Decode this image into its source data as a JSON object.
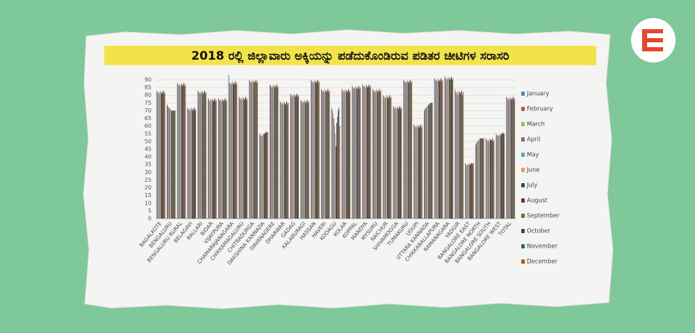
{
  "chart_data": {
    "type": "bar",
    "title": "2018 ರಲ್ಲಿ ಜಿಲ್ಲಾವಾರು ಅಕ್ಕಿಯನ್ನು ಪಡೆದುಕೊಂಡಿರುವ ಪಡಿತರ ಚೀಟಿಗಳ ಸರಾಸರಿ",
    "categories": [
      "BAGALKOTE",
      "BENGALURU",
      "BENGALURU RURAL",
      "BELAGAVI",
      "BALLARI",
      "BIDAR",
      "VIJAYPURA",
      "CHAMARAJANAGARA",
      "CHIKKAMAGALURU",
      "CHITRADURGA",
      "DAKSHINA KANNADA",
      "DAVANAGERE",
      "DHARWAR",
      "GADAG",
      "KALABURAGI",
      "HASSAN",
      "HAVERI",
      "KODAGU",
      "KOLAR",
      "KOPPAL",
      "MANDYA",
      "MYSURU",
      "RAICHUR",
      "SHIVAMOGGA",
      "TUMAKURU",
      "UDUPI",
      "UTTARA KANNADA",
      "CHIKKABALLAPURA",
      "RAMANAGARA",
      "YADGIR",
      "BANGALORE EAST",
      "BANGALORE NORTH",
      "BANGALORE SOUTH",
      "BANGALORE WEST",
      "TOTAL"
    ],
    "series": [
      {
        "name": "January",
        "color": "#4f81bd",
        "values": [
          83,
          74,
          88,
          72,
          83,
          78,
          78,
          93,
          79,
          90,
          55,
          87,
          76,
          81,
          77,
          90,
          84,
          72,
          84,
          86,
          87,
          84,
          80,
          73,
          90,
          61,
          70,
          91,
          92,
          84,
          36,
          48,
          52,
          55,
          79
        ]
      },
      {
        "name": "February",
        "color": "#c0504d",
        "values": [
          82,
          73,
          87,
          71,
          82,
          77,
          77,
          88,
          78,
          89,
          54,
          86,
          75,
          80,
          76,
          89,
          83,
          70,
          83,
          85,
          86,
          83,
          79,
          72,
          89,
          60,
          71,
          90,
          91,
          82,
          35,
          49,
          51,
          54,
          78
        ]
      },
      {
        "name": "March",
        "color": "#9bbb59",
        "values": [
          81,
          72,
          86,
          70,
          81,
          76,
          76,
          87,
          77,
          88,
          53,
          85,
          74,
          79,
          75,
          88,
          82,
          68,
          82,
          84,
          85,
          82,
          78,
          71,
          88,
          59,
          72,
          89,
          90,
          81,
          34,
          50,
          50,
          53,
          77
        ]
      },
      {
        "name": "April",
        "color": "#8064a2",
        "values": [
          82,
          72,
          87,
          71,
          82,
          77,
          77,
          88,
          78,
          89,
          54,
          86,
          75,
          80,
          76,
          89,
          83,
          65,
          83,
          85,
          86,
          83,
          79,
          72,
          89,
          60,
          72,
          90,
          91,
          82,
          35,
          50,
          51,
          54,
          78
        ]
      },
      {
        "name": "May",
        "color": "#4bacc6",
        "values": [
          81,
          71,
          86,
          70,
          81,
          76,
          76,
          87,
          77,
          88,
          54,
          85,
          74,
          79,
          75,
          88,
          82,
          60,
          82,
          84,
          85,
          82,
          78,
          71,
          88,
          59,
          73,
          89,
          90,
          80,
          35,
          51,
          50,
          54,
          77
        ]
      },
      {
        "name": "June",
        "color": "#f79646",
        "values": [
          83,
          71,
          88,
          72,
          83,
          78,
          78,
          89,
          79,
          90,
          55,
          87,
          76,
          81,
          77,
          90,
          84,
          55,
          84,
          86,
          87,
          84,
          80,
          73,
          90,
          61,
          73,
          91,
          92,
          83,
          36,
          51,
          52,
          55,
          79
        ]
      },
      {
        "name": "July",
        "color": "#2c4d75",
        "values": [
          82,
          70,
          87,
          71,
          82,
          77,
          77,
          88,
          78,
          89,
          55,
          86,
          75,
          80,
          76,
          89,
          83,
          47,
          83,
          85,
          86,
          83,
          79,
          72,
          89,
          60,
          74,
          90,
          91,
          82,
          35,
          52,
          51,
          54,
          78
        ]
      },
      {
        "name": "August",
        "color": "#772c2a",
        "values": [
          81,
          70,
          86,
          70,
          81,
          76,
          76,
          87,
          77,
          88,
          55,
          85,
          74,
          79,
          75,
          88,
          82,
          62,
          82,
          84,
          85,
          82,
          78,
          71,
          88,
          59,
          74,
          89,
          90,
          81,
          35,
          52,
          51,
          55,
          77
        ]
      },
      {
        "name": "September",
        "color": "#5f7530",
        "values": [
          82,
          70,
          87,
          71,
          82,
          77,
          77,
          88,
          78,
          89,
          56,
          86,
          75,
          80,
          76,
          89,
          83,
          66,
          83,
          85,
          86,
          83,
          79,
          72,
          89,
          60,
          75,
          90,
          91,
          82,
          36,
          52,
          51,
          55,
          78
        ]
      },
      {
        "name": "October",
        "color": "#4d3b62",
        "values": [
          83,
          70,
          88,
          72,
          83,
          78,
          78,
          89,
          79,
          90,
          56,
          87,
          76,
          81,
          77,
          90,
          84,
          70,
          84,
          86,
          87,
          84,
          80,
          73,
          90,
          61,
          75,
          91,
          92,
          83,
          36,
          52,
          52,
          56,
          79
        ]
      },
      {
        "name": "November",
        "color": "#276a7c",
        "values": [
          81,
          70,
          86,
          70,
          81,
          76,
          76,
          87,
          77,
          88,
          56,
          85,
          74,
          79,
          75,
          88,
          82,
          72,
          82,
          84,
          85,
          82,
          78,
          71,
          88,
          59,
          75,
          89,
          90,
          80,
          35,
          52,
          50,
          55,
          77
        ]
      },
      {
        "name": "December",
        "color": "#b65708",
        "values": [
          82,
          70,
          87,
          71,
          82,
          77,
          77,
          88,
          78,
          89,
          56,
          86,
          75,
          80,
          76,
          89,
          83,
          60,
          83,
          85,
          86,
          83,
          79,
          72,
          89,
          60,
          75,
          90,
          91,
          82,
          36,
          52,
          51,
          55,
          78
        ]
      }
    ],
    "ylim": [
      0,
      90
    ],
    "yticks": [
      0,
      5,
      10,
      15,
      20,
      25,
      30,
      35,
      40,
      45,
      50,
      55,
      60,
      65,
      70,
      75,
      80,
      85,
      90
    ],
    "grid": true
  }
}
